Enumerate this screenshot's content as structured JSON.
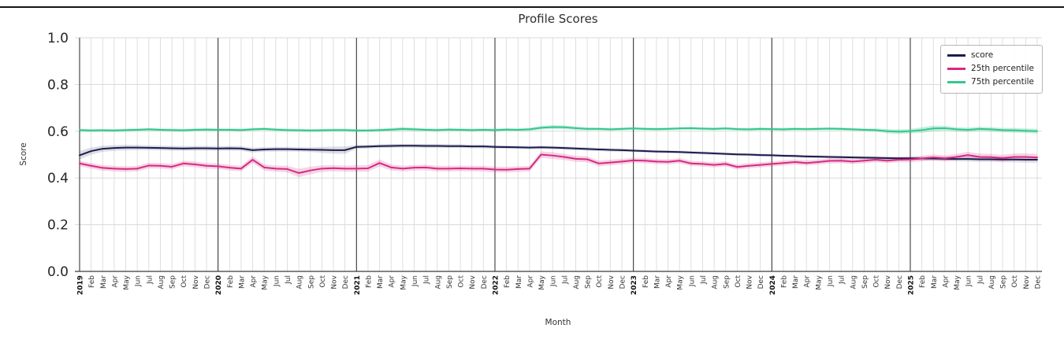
{
  "figure": {
    "title": "Profile Scores"
  },
  "chart_data": {
    "type": "line",
    "title": "Profile Scores",
    "xlabel": "Month",
    "ylabel": "Score",
    "ylim": [
      0.0,
      1.0
    ],
    "yticks": [
      0.0,
      0.2,
      0.4,
      0.6,
      0.8,
      1.0
    ],
    "ytick_labels": [
      "0.0",
      "0.2",
      "0.4",
      "0.6",
      "0.8",
      "1.0"
    ],
    "grid": true,
    "legend_position": "upper right",
    "x_labels": [
      "2019",
      "Feb",
      "Mar",
      "Apr",
      "May",
      "Jun",
      "Jul",
      "Aug",
      "Sep",
      "Oct",
      "Nov",
      "Dec",
      "2020",
      "Feb",
      "Mar",
      "Apr",
      "May",
      "Jun",
      "Jul",
      "Aug",
      "Sep",
      "Oct",
      "Nov",
      "Dec",
      "2021",
      "Feb",
      "Mar",
      "Apr",
      "May",
      "Jun",
      "Jul",
      "Aug",
      "Sep",
      "Oct",
      "Nov",
      "Dec",
      "2022",
      "Feb",
      "Mar",
      "Apr",
      "May",
      "Jun",
      "Jul",
      "Aug",
      "Sep",
      "Oct",
      "Nov",
      "Dec",
      "2023",
      "Feb",
      "Mar",
      "Apr",
      "May",
      "Jun",
      "Jul",
      "Aug",
      "Sep",
      "Oct",
      "Nov",
      "Dec",
      "2024",
      "Feb",
      "Mar",
      "Apr",
      "May",
      "Jun",
      "Jul",
      "Aug",
      "Sep",
      "Oct",
      "Nov",
      "Dec",
      "2025",
      "Feb",
      "Mar",
      "Apr",
      "May",
      "Jun",
      "Jul",
      "Aug",
      "Sep",
      "Oct",
      "Nov",
      "Dec"
    ],
    "year_line_indices": [
      0,
      12,
      24,
      36,
      48,
      60,
      72
    ],
    "series": [
      {
        "name": "score",
        "color": "#1c1c4e",
        "band_opacity": 0.15,
        "values": [
          0.497,
          0.515,
          0.525,
          0.528,
          0.53,
          0.53,
          0.529,
          0.528,
          0.527,
          0.526,
          0.527,
          0.527,
          0.526,
          0.527,
          0.526,
          0.519,
          0.522,
          0.523,
          0.523,
          0.522,
          0.521,
          0.52,
          0.519,
          0.519,
          0.533,
          0.534,
          0.536,
          0.537,
          0.538,
          0.538,
          0.537,
          0.537,
          0.536,
          0.536,
          0.535,
          0.535,
          0.533,
          0.532,
          0.531,
          0.53,
          0.531,
          0.53,
          0.528,
          0.526,
          0.524,
          0.522,
          0.52,
          0.519,
          0.517,
          0.515,
          0.513,
          0.512,
          0.511,
          0.509,
          0.507,
          0.505,
          0.503,
          0.501,
          0.5,
          0.498,
          0.497,
          0.495,
          0.494,
          0.492,
          0.491,
          0.49,
          0.489,
          0.488,
          0.487,
          0.486,
          0.485,
          0.484,
          0.484,
          0.483,
          0.483,
          0.482,
          0.481,
          0.481,
          0.48,
          0.48,
          0.479,
          0.479,
          0.478,
          0.478
        ],
        "band": [
          0.018,
          0.015,
          0.013,
          0.012,
          0.012,
          0.011,
          0.01,
          0.01,
          0.01,
          0.01,
          0.01,
          0.01,
          0.01,
          0.01,
          0.01,
          0.01,
          0.01,
          0.01,
          0.01,
          0.01,
          0.01,
          0.013,
          0.015,
          0.016,
          0.008,
          0.008,
          0.008,
          0.008,
          0.008,
          0.008,
          0.008,
          0.008,
          0.008,
          0.008,
          0.008,
          0.008,
          0.007,
          0.007,
          0.007,
          0.007,
          0.007,
          0.007,
          0.007,
          0.007,
          0.007,
          0.007,
          0.007,
          0.007,
          0.006,
          0.006,
          0.006,
          0.006,
          0.006,
          0.006,
          0.006,
          0.006,
          0.006,
          0.006,
          0.006,
          0.006,
          0.006,
          0.006,
          0.006,
          0.006,
          0.006,
          0.006,
          0.006,
          0.006,
          0.006,
          0.007,
          0.007,
          0.007,
          0.007,
          0.008,
          0.009,
          0.009,
          0.01,
          0.01,
          0.011,
          0.011,
          0.012,
          0.012,
          0.013,
          0.013
        ]
      },
      {
        "name": "25th percentile",
        "color": "#d62a80",
        "band_opacity": 0.2,
        "values": [
          0.462,
          0.452,
          0.443,
          0.44,
          0.438,
          0.44,
          0.453,
          0.452,
          0.448,
          0.462,
          0.458,
          0.452,
          0.45,
          0.444,
          0.44,
          0.478,
          0.445,
          0.44,
          0.438,
          0.421,
          0.432,
          0.44,
          0.442,
          0.44,
          0.44,
          0.441,
          0.464,
          0.445,
          0.44,
          0.444,
          0.445,
          0.44,
          0.44,
          0.441,
          0.44,
          0.44,
          0.436,
          0.435,
          0.438,
          0.44,
          0.5,
          0.496,
          0.49,
          0.482,
          0.48,
          0.462,
          0.466,
          0.47,
          0.475,
          0.474,
          0.47,
          0.469,
          0.474,
          0.462,
          0.46,
          0.456,
          0.46,
          0.447,
          0.452,
          0.456,
          0.46,
          0.464,
          0.468,
          0.464,
          0.468,
          0.473,
          0.474,
          0.47,
          0.474,
          0.478,
          0.474,
          0.478,
          0.479,
          0.483,
          0.488,
          0.484,
          0.49,
          0.498,
          0.49,
          0.489,
          0.485,
          0.49,
          0.49,
          0.488
        ],
        "band": [
          0.012,
          0.012,
          0.012,
          0.012,
          0.012,
          0.012,
          0.012,
          0.012,
          0.012,
          0.012,
          0.012,
          0.012,
          0.012,
          0.012,
          0.012,
          0.014,
          0.013,
          0.013,
          0.014,
          0.018,
          0.016,
          0.014,
          0.013,
          0.013,
          0.014,
          0.014,
          0.015,
          0.013,
          0.012,
          0.012,
          0.012,
          0.012,
          0.012,
          0.012,
          0.012,
          0.012,
          0.012,
          0.012,
          0.012,
          0.012,
          0.014,
          0.014,
          0.013,
          0.013,
          0.013,
          0.012,
          0.012,
          0.012,
          0.011,
          0.011,
          0.011,
          0.011,
          0.011,
          0.011,
          0.011,
          0.011,
          0.011,
          0.011,
          0.011,
          0.011,
          0.011,
          0.011,
          0.011,
          0.011,
          0.011,
          0.011,
          0.011,
          0.011,
          0.011,
          0.011,
          0.011,
          0.011,
          0.012,
          0.012,
          0.013,
          0.013,
          0.013,
          0.014,
          0.014,
          0.014,
          0.014,
          0.015,
          0.015,
          0.015
        ]
      },
      {
        "name": "75th percentile",
        "color": "#34c78d",
        "band_opacity": 0.28,
        "values": [
          0.605,
          0.603,
          0.604,
          0.603,
          0.605,
          0.606,
          0.608,
          0.606,
          0.605,
          0.604,
          0.606,
          0.607,
          0.606,
          0.606,
          0.605,
          0.608,
          0.61,
          0.607,
          0.605,
          0.604,
          0.603,
          0.604,
          0.605,
          0.605,
          0.603,
          0.603,
          0.605,
          0.607,
          0.61,
          0.608,
          0.606,
          0.605,
          0.607,
          0.606,
          0.605,
          0.606,
          0.605,
          0.607,
          0.606,
          0.608,
          0.615,
          0.618,
          0.617,
          0.613,
          0.61,
          0.61,
          0.608,
          0.61,
          0.612,
          0.61,
          0.609,
          0.61,
          0.612,
          0.613,
          0.611,
          0.61,
          0.612,
          0.609,
          0.608,
          0.61,
          0.609,
          0.608,
          0.61,
          0.609,
          0.61,
          0.611,
          0.61,
          0.608,
          0.606,
          0.605,
          0.6,
          0.598,
          0.6,
          0.605,
          0.612,
          0.613,
          0.608,
          0.606,
          0.61,
          0.608,
          0.605,
          0.604,
          0.602,
          0.6
        ],
        "band": [
          0.006,
          0.006,
          0.006,
          0.006,
          0.006,
          0.006,
          0.006,
          0.006,
          0.006,
          0.006,
          0.006,
          0.006,
          0.006,
          0.006,
          0.006,
          0.006,
          0.006,
          0.006,
          0.006,
          0.006,
          0.006,
          0.006,
          0.006,
          0.006,
          0.006,
          0.006,
          0.006,
          0.007,
          0.008,
          0.007,
          0.006,
          0.006,
          0.006,
          0.006,
          0.006,
          0.006,
          0.006,
          0.006,
          0.006,
          0.007,
          0.008,
          0.008,
          0.008,
          0.008,
          0.007,
          0.006,
          0.006,
          0.006,
          0.006,
          0.006,
          0.006,
          0.006,
          0.006,
          0.006,
          0.006,
          0.006,
          0.006,
          0.006,
          0.006,
          0.006,
          0.006,
          0.006,
          0.006,
          0.006,
          0.006,
          0.006,
          0.006,
          0.006,
          0.006,
          0.007,
          0.009,
          0.01,
          0.01,
          0.012,
          0.012,
          0.01,
          0.009,
          0.009,
          0.009,
          0.009,
          0.009,
          0.01,
          0.01,
          0.01
        ]
      }
    ]
  },
  "colors": {
    "grid": "#dadada",
    "year_line": "#3a3a3a",
    "tick_label": "#262626",
    "legend_border": "#b5b5b5"
  }
}
